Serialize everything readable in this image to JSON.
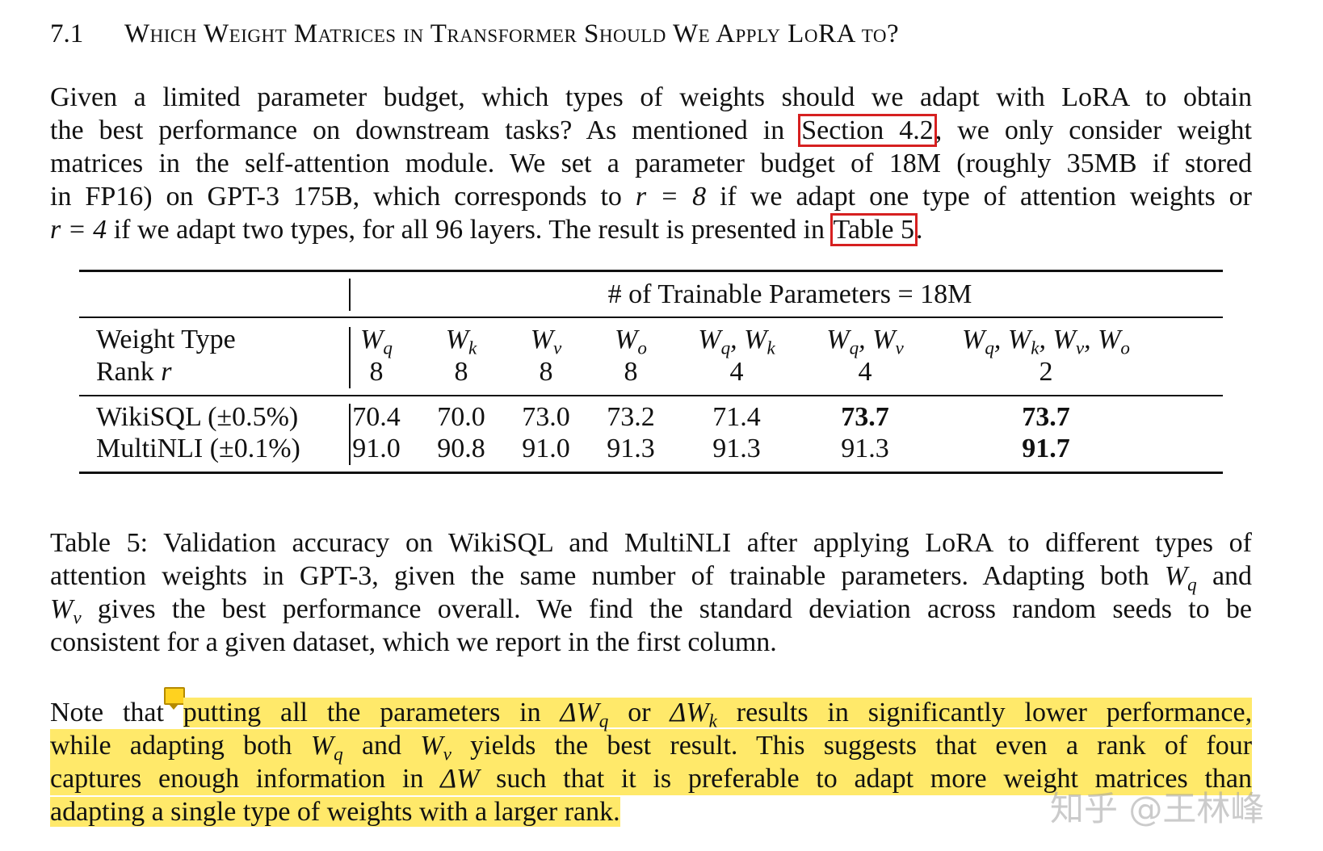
{
  "section": {
    "number": "7.1",
    "title": "Which Weight Matrices in Transformer Should We Apply LoRA to?"
  },
  "intro": {
    "l1": "Given a limited parameter budget, which types of weights should we adapt with LoRA to obtain",
    "l2_a": "the best performance on downstream tasks? As mentioned in",
    "l2_ref": "Section 4.2",
    "l2_b": ", we only consider weight",
    "l3": "matrices in the self-attention module. We set a parameter budget of 18M (roughly 35MB if stored",
    "l4_a": "in FP16) on GPT-3 175B, which corresponds to",
    "l4_math1": "r = 8",
    "l4_b": "if we adapt one type of attention weights or",
    "l5_math": "r = 4",
    "l5_a": "if we adapt two types, for all 96 layers. The result is presented in",
    "l5_ref": "Table 5",
    "l5_b": "."
  },
  "table": {
    "group_header": "# of Trainable Parameters = 18M",
    "row_label_weight": "Weight Type",
    "row_label_rank_text": "Rank",
    "row_label_rank_sym": "r",
    "columns": [
      {
        "W": "W",
        "sub": "q",
        "rank": "8"
      },
      {
        "W": "W",
        "sub": "k",
        "rank": "8"
      },
      {
        "W": "W",
        "sub": "v",
        "rank": "8"
      },
      {
        "W": "W",
        "sub": "o",
        "rank": "8"
      },
      {
        "W": "W",
        "sub": "q",
        "W2": "W",
        "sub2": "k",
        "rank": "4"
      },
      {
        "W": "W",
        "sub": "q",
        "W2": "W",
        "sub2": "v",
        "rank": "4"
      },
      {
        "multi": "Wq, Wk, Wv, Wo",
        "rank": "2"
      }
    ],
    "rows": [
      {
        "label": "WikiSQL (±0.5%)",
        "values": [
          "70.4",
          "70.0",
          "73.0",
          "73.2",
          "71.4",
          "73.7",
          "73.7"
        ],
        "bold": [
          false,
          false,
          false,
          false,
          false,
          true,
          true
        ]
      },
      {
        "label": "MultiNLI (±0.1%)",
        "values": [
          "91.0",
          "90.8",
          "91.0",
          "91.3",
          "91.3",
          "91.3",
          "91.7"
        ],
        "bold": [
          false,
          false,
          false,
          false,
          false,
          false,
          true
        ]
      }
    ]
  },
  "caption": {
    "l1": "Table 5: Validation accuracy on WikiSQL and MultiNLI after applying LoRA to different types of",
    "l2_a": "attention weights in GPT-3, given the same number of trainable parameters. Adapting both",
    "l2_b": "and",
    "l3_a": "gives the best performance overall. We find the standard deviation across random seeds to be",
    "l4": "consistent for a given dataset, which we report in the first column."
  },
  "note": {
    "l1_a": "Note that",
    "l1_b": "putting all the parameters in",
    "l1_c": "or",
    "l1_d": "results in significantly lower performance,",
    "l2_a": "while adapting both",
    "l2_b": "and",
    "l2_c": "yields the best result. This suggests that even a rank of four",
    "l3_a": "captures enough information in",
    "l3_b": "such that it is preferable to adapt more weight matrices than",
    "l4": "adapting a single type of weights with a larger rank."
  },
  "watermark": "知乎 @王林峰",
  "colors": {
    "highlight": "#ffe96a",
    "ref_box": "#d62020"
  }
}
